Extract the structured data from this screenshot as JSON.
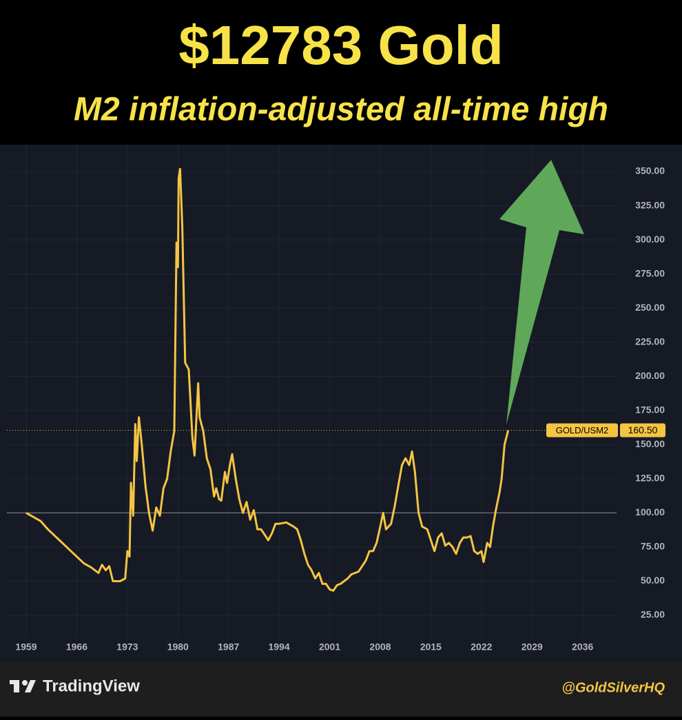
{
  "chart_data": {
    "type": "line",
    "title": "$12783 Gold",
    "subtitle": "M2 inflation-adjusted all-time high",
    "x": [
      1959.0,
      1960,
      1961,
      1962,
      1963,
      1964,
      1965,
      1966,
      1967,
      1968,
      1969,
      1969.5,
      1970,
      1970.5,
      1971,
      1972,
      1972.7,
      1973,
      1973.3,
      1973.5,
      1973.8,
      1974.1,
      1974.3,
      1974.6,
      1975,
      1975.5,
      1976,
      1976.5,
      1977,
      1977.5,
      1978,
      1978.5,
      1979,
      1979.5,
      1979.8,
      1980.0,
      1980.1,
      1980.3,
      1980.6,
      1981,
      1981.5,
      1982,
      1982.3,
      1982.8,
      1983,
      1983.5,
      1984,
      1984.5,
      1985,
      1985.3,
      1985.7,
      1986,
      1986.5,
      1986.8,
      1987.2,
      1987.5,
      1988,
      1988.5,
      1989,
      1989.5,
      1990,
      1990.5,
      1991,
      1991.5,
      1992,
      1992.5,
      1993,
      1993.5,
      1994,
      1995,
      1996,
      1996.5,
      1997,
      1997.5,
      1998,
      1998.5,
      1999,
      1999.5,
      2000,
      2000.5,
      2001,
      2001.5,
      2002,
      2002.5,
      2003,
      2003.5,
      2004,
      2005,
      2006,
      2006.5,
      2007,
      2007.5,
      2008,
      2008.4,
      2008.8,
      2009.5,
      2010,
      2010.5,
      2011,
      2011.5,
      2012,
      2012.4,
      2012.8,
      2013.3,
      2013.8,
      2014.5,
      2015,
      2015.5,
      2016,
      2016.5,
      2017,
      2017.5,
      2018,
      2018.5,
      2019,
      2019.5,
      2020,
      2020.5,
      2021,
      2021.5,
      2022,
      2022.3,
      2022.8,
      2023.2,
      2023.6,
      2024,
      2024.5,
      2024.8,
      2025.2,
      2025.7
    ],
    "series": [
      {
        "name": "GOLD/USM2",
        "color": "#f5c542",
        "values": [
          100,
          97,
          94,
          88,
          83,
          78,
          73,
          68,
          63,
          60,
          56,
          62,
          58,
          61,
          50,
          50,
          52,
          72,
          68,
          122,
          98,
          165,
          138,
          170,
          150,
          120,
          100,
          87,
          104,
          98,
          118,
          125,
          145,
          160,
          298,
          280,
          345,
          352,
          310,
          210,
          205,
          155,
          142,
          195,
          170,
          160,
          140,
          132,
          112,
          118,
          110,
          109,
          130,
          122,
          135,
          143,
          125,
          110,
          100,
          108,
          95,
          102,
          88,
          88,
          84,
          80,
          85,
          92,
          92,
          93,
          90,
          88,
          80,
          70,
          62,
          58,
          52,
          56,
          48,
          48,
          44,
          43,
          47,
          48,
          50,
          52,
          55,
          57,
          65,
          72,
          72,
          78,
          90,
          100,
          88,
          92,
          105,
          120,
          135,
          140,
          135,
          145,
          130,
          100,
          90,
          88,
          80,
          72,
          82,
          85,
          76,
          78,
          75,
          70,
          78,
          82,
          82,
          83,
          72,
          70,
          72,
          64,
          78,
          75,
          90,
          102,
          115,
          125,
          150,
          160.5
        ]
      }
    ],
    "last_value": {
      "value": 160.5,
      "label": "160.50"
    },
    "baseline": 100,
    "xlim": [
      1956.33,
      2040.7
    ],
    "ylim": [
      8.85,
      369.7
    ],
    "xticks": [
      1959,
      1966,
      1973,
      1980,
      1987,
      1994,
      2001,
      2008,
      2015,
      2022,
      2029,
      2036
    ],
    "yticks": [
      {
        "value": 25,
        "label": "25.00"
      },
      {
        "value": 50,
        "label": "50.00"
      },
      {
        "value": 75,
        "label": "75.00"
      },
      {
        "value": 100,
        "label": "100.00"
      },
      {
        "value": 125,
        "label": "125.00"
      },
      {
        "value": 150,
        "label": "150.00"
      },
      {
        "value": 175,
        "label": "175.00"
      },
      {
        "value": 200,
        "label": "200.00"
      },
      {
        "value": 225,
        "label": "225.00"
      },
      {
        "value": 250,
        "label": "250.00"
      },
      {
        "value": 275,
        "label": "275.00"
      },
      {
        "value": 300,
        "label": "300.00"
      },
      {
        "value": 325,
        "label": "325.00"
      },
      {
        "value": 350,
        "label": "350.00"
      }
    ],
    "grid": true
  },
  "footer": {
    "brand": "TradingView",
    "credit": "@GoldSilverHQ"
  }
}
